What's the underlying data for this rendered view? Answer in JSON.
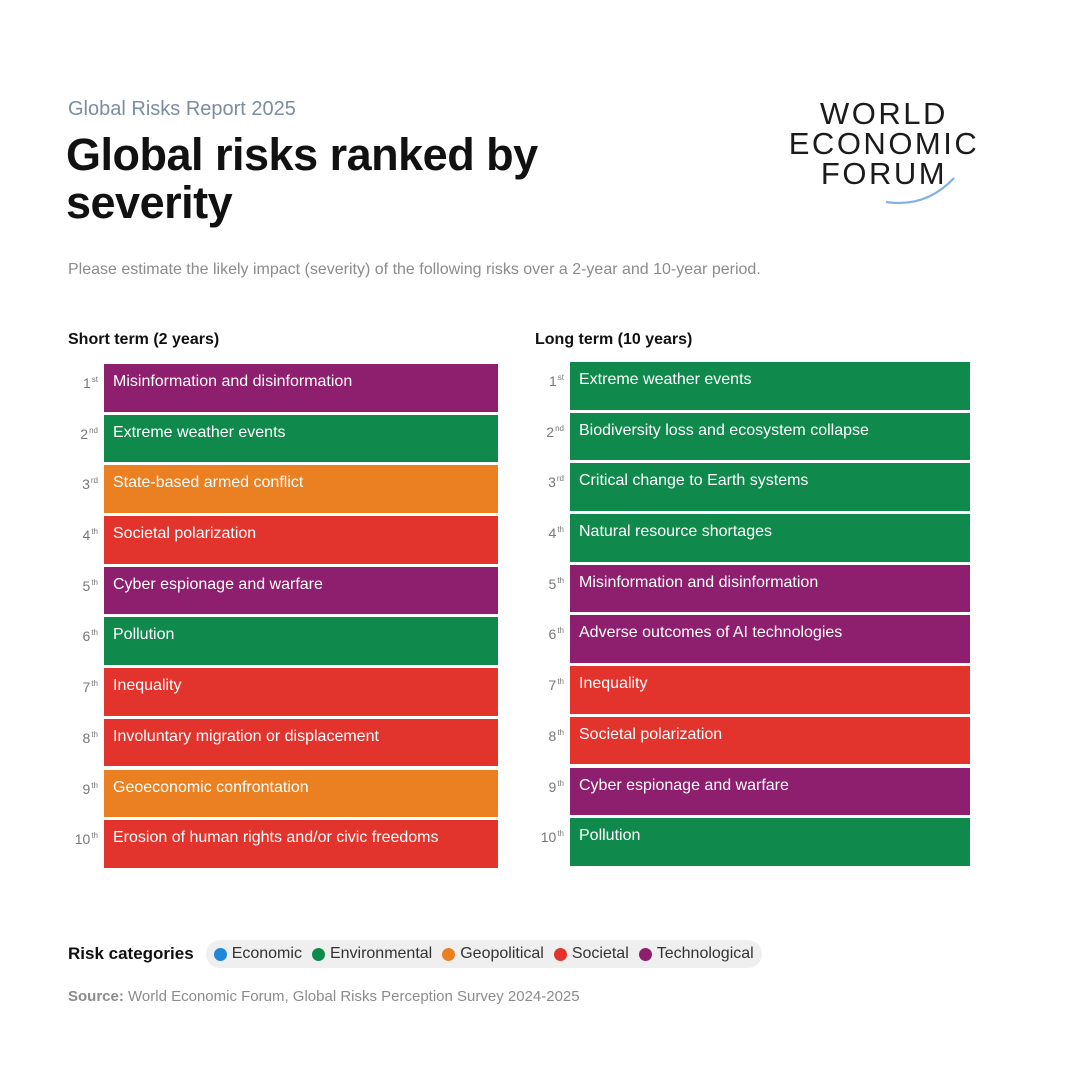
{
  "header": {
    "kicker": "Global Risks Report 2025",
    "title": "Global risks ranked by severity",
    "subtitle": "Please estimate the likely impact (severity) of the following risks over a 2-year and 10-year period."
  },
  "logo": {
    "line1": "WORLD",
    "line2": "ECONOMIC",
    "line3": "FORUM"
  },
  "colors": {
    "Economic": "#1f86d9",
    "Environmental": "#0f8a4c",
    "Geopolitical": "#ea8022",
    "Societal": "#e2342c",
    "Technological": "#8e1f6e"
  },
  "chart_data": {
    "type": "table",
    "columns": [
      {
        "heading": "Short term (2 years)",
        "rows": [
          {
            "rank": "1",
            "suffix": "st",
            "risk": "Misinformation and disinformation",
            "category": "Technological"
          },
          {
            "rank": "2",
            "suffix": "nd",
            "risk": "Extreme weather events",
            "category": "Environmental"
          },
          {
            "rank": "3",
            "suffix": "rd",
            "risk": "State-based armed conflict",
            "category": "Geopolitical"
          },
          {
            "rank": "4",
            "suffix": "th",
            "risk": "Societal polarization",
            "category": "Societal"
          },
          {
            "rank": "5",
            "suffix": "th",
            "risk": "Cyber espionage and warfare",
            "category": "Technological"
          },
          {
            "rank": "6",
            "suffix": "th",
            "risk": "Pollution",
            "category": "Environmental"
          },
          {
            "rank": "7",
            "suffix": "th",
            "risk": "Inequality",
            "category": "Societal"
          },
          {
            "rank": "8",
            "suffix": "th",
            "risk": "Involuntary migration or displacement",
            "category": "Societal"
          },
          {
            "rank": "9",
            "suffix": "th",
            "risk": "Geoeconomic confrontation",
            "category": "Geopolitical"
          },
          {
            "rank": "10",
            "suffix": "th",
            "risk": "Erosion of human rights and/or civic freedoms",
            "category": "Societal"
          }
        ]
      },
      {
        "heading": "Long term (10 years)",
        "rows": [
          {
            "rank": "1",
            "suffix": "st",
            "risk": "Extreme weather events",
            "category": "Environmental"
          },
          {
            "rank": "2",
            "suffix": "nd",
            "risk": "Biodiversity loss and ecosystem collapse",
            "category": "Environmental"
          },
          {
            "rank": "3",
            "suffix": "rd",
            "risk": "Critical change to Earth systems",
            "category": "Environmental"
          },
          {
            "rank": "4",
            "suffix": "th",
            "risk": "Natural resource shortages",
            "category": "Environmental"
          },
          {
            "rank": "5",
            "suffix": "th",
            "risk": "Misinformation and disinformation",
            "category": "Technological"
          },
          {
            "rank": "6",
            "suffix": "th",
            "risk": "Adverse outcomes of AI technologies",
            "category": "Technological"
          },
          {
            "rank": "7",
            "suffix": "th",
            "risk": "Inequality",
            "category": "Societal"
          },
          {
            "rank": "8",
            "suffix": "th",
            "risk": "Societal polarization",
            "category": "Societal"
          },
          {
            "rank": "9",
            "suffix": "th",
            "risk": "Cyber espionage and warfare",
            "category": "Technological"
          },
          {
            "rank": "10",
            "suffix": "th",
            "risk": "Pollution",
            "category": "Environmental"
          }
        ]
      }
    ]
  },
  "legend": {
    "title": "Risk categories",
    "items": [
      "Economic",
      "Environmental",
      "Geopolitical",
      "Societal",
      "Technological"
    ]
  },
  "source": {
    "label": "Source:",
    "text": " World Economic Forum, Global Risks Perception Survey 2024-2025"
  }
}
